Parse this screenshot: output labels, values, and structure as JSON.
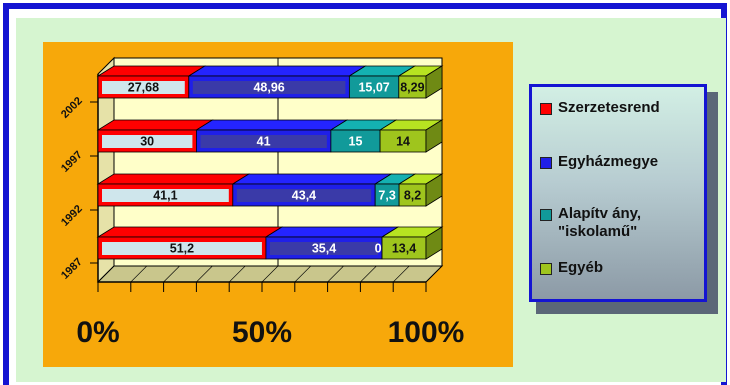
{
  "chart_data": {
    "type": "bar",
    "orientation": "horizontal",
    "stacked": "percent",
    "categories": [
      "1987",
      "1992",
      "1997",
      "2002"
    ],
    "series": [
      {
        "name": "Szerzetesrend",
        "color": "#ff0000",
        "values": [
          51.2,
          41.1,
          30,
          27.68
        ],
        "labels": [
          "51,2",
          "41,1",
          "30",
          "27,68"
        ]
      },
      {
        "name": "Egyházmegye",
        "color": "#1f1fe8",
        "values": [
          35.4,
          43.4,
          41,
          48.96
        ],
        "labels": [
          "35,4",
          "43,4",
          "41",
          "48,96"
        ]
      },
      {
        "name": "Alapítvány, \"iskolamű\"",
        "color": "#119a9a",
        "values": [
          0,
          7.3,
          15,
          15.07
        ],
        "labels": [
          "0",
          "7,3",
          "15",
          "15,07"
        ]
      },
      {
        "name": "Egyéb",
        "color": "#9fc51d",
        "values": [
          13.4,
          8.2,
          14,
          8.29
        ],
        "labels": [
          "13,4",
          "8,2",
          "14",
          "8,29"
        ]
      }
    ],
    "x_ticks": [
      "0%",
      "50%",
      "100%"
    ],
    "xlim": [
      0,
      100
    ],
    "grid": true,
    "legend": "right",
    "background": "#f7a80a"
  },
  "legend": {
    "items": [
      {
        "label": "Szerzetesrend",
        "color": "#ff0000"
      },
      {
        "label": "Egyházmegye",
        "color": "#1f1fe8"
      },
      {
        "label": "Alapítv ány,",
        "label2": "\"iskolamű\"",
        "color": "#119a9a"
      },
      {
        "label": "Egyéb",
        "color": "#9fc51d"
      }
    ]
  }
}
